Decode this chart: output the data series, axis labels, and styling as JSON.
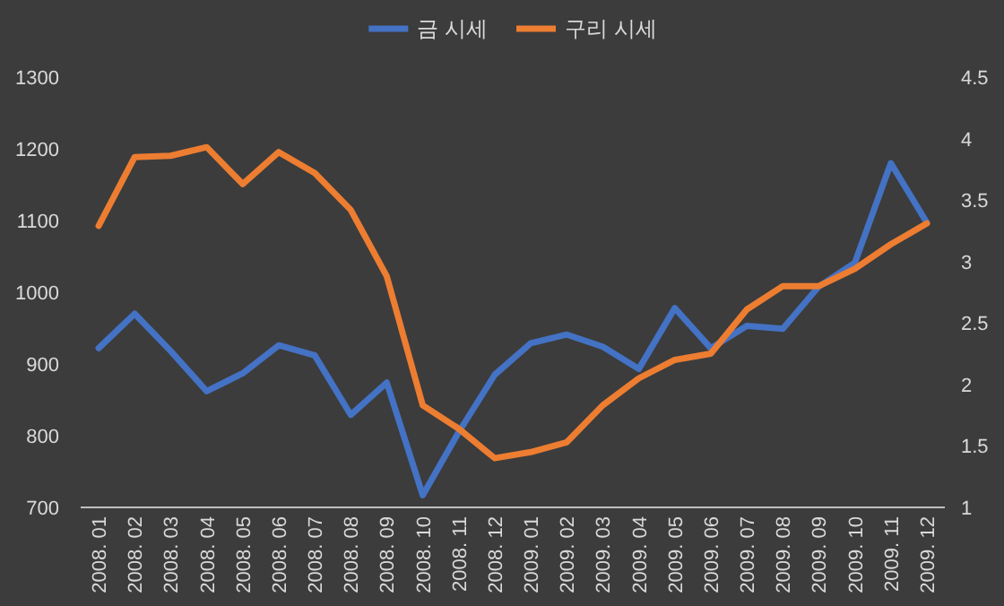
{
  "chart_data": {
    "type": "line",
    "categories": [
      "2008. 01",
      "2008. 02",
      "2008. 03",
      "2008. 04",
      "2008. 05",
      "2008. 06",
      "2008. 07",
      "2008. 08",
      "2008. 09",
      "2008. 10",
      "2008. 11",
      "2008. 12",
      "2009. 01",
      "2009. 02",
      "2009. 03",
      "2009. 04",
      "2009. 05",
      "2009. 06",
      "2009. 07",
      "2009. 08",
      "2009. 09",
      "2009. 10",
      "2009. 11",
      "2009. 12"
    ],
    "series": [
      {
        "name": "금 시세",
        "color": "#4472c4",
        "values": [
          922,
          970,
          918,
          862,
          887,
          926,
          912,
          829,
          874,
          717,
          805,
          885,
          929,
          941,
          924,
          893,
          978,
          922,
          953,
          949,
          1008,
          1041,
          1180,
          1097
        ]
      },
      {
        "name": "구리 시세",
        "color": "#ed7d31",
        "axis": "y2",
        "values": [
          3.29,
          3.85,
          3.86,
          3.93,
          3.63,
          3.89,
          3.72,
          3.42,
          2.88,
          1.83,
          1.64,
          1.4,
          1.45,
          1.53,
          1.83,
          2.05,
          2.2,
          2.25,
          2.61,
          2.8,
          2.8,
          2.94,
          3.14,
          3.31
        ]
      }
    ],
    "ylim": [
      700,
      1300
    ],
    "yticks": [
      700,
      800,
      900,
      1000,
      1100,
      1200,
      1300
    ],
    "y2lim": [
      1,
      4.5
    ],
    "y2ticks": [
      1,
      1.5,
      2,
      2.5,
      3,
      3.5,
      4,
      4.5
    ],
    "legend": "top",
    "marker": "none",
    "line_style": "solid"
  }
}
